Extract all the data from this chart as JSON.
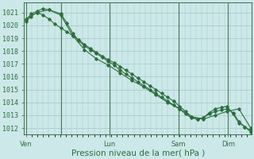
{
  "bg_color": "#cce8e8",
  "grid_color": "#aacccc",
  "line_color": "#2d6e3e",
  "marker_color": "#2d6e3e",
  "ylim": [
    1011.5,
    1021.8
  ],
  "yticks": [
    1012,
    1013,
    1014,
    1015,
    1016,
    1017,
    1018,
    1019,
    1020,
    1021
  ],
  "xlabel": "Pression niveau de la mer( hPa )",
  "vline_x": [
    0,
    35,
    84,
    154,
    204
  ],
  "xtick_positions": [
    0,
    35,
    84,
    154,
    204
  ],
  "xtick_labels": [
    "Ven",
    "",
    "Lun",
    "Sam",
    "Dim"
  ],
  "total_points": 229,
  "series1_x": [
    0,
    5,
    11,
    17,
    23,
    29,
    35,
    41,
    47,
    53,
    59,
    65,
    71,
    77,
    83,
    89,
    95,
    101,
    107,
    113,
    119,
    125,
    131,
    137,
    143,
    149,
    155,
    161,
    167,
    173,
    179,
    185,
    191,
    197,
    203,
    209,
    215,
    221,
    227
  ],
  "series1_y": [
    1020.3,
    1020.7,
    1021.0,
    1020.8,
    1020.5,
    1020.1,
    1019.8,
    1019.5,
    1019.2,
    1018.9,
    1018.5,
    1018.2,
    1017.9,
    1017.6,
    1017.3,
    1017.1,
    1016.8,
    1016.5,
    1016.2,
    1015.9,
    1015.6,
    1015.3,
    1015.0,
    1014.7,
    1014.4,
    1014.1,
    1013.7,
    1013.3,
    1012.9,
    1012.7,
    1012.8,
    1013.1,
    1013.3,
    1013.4,
    1013.5,
    1013.2,
    1012.5,
    1012.1,
    1011.8
  ],
  "series2_x": [
    0,
    5,
    11,
    17,
    23,
    35,
    41,
    47,
    53,
    59,
    65,
    71,
    77,
    83,
    89,
    95,
    101,
    107,
    113,
    119,
    125,
    131,
    137,
    143,
    149,
    155,
    161,
    167,
    173,
    179,
    185,
    191,
    197,
    203,
    209,
    215,
    221,
    227
  ],
  "series2_y": [
    1020.4,
    1020.9,
    1021.1,
    1021.3,
    1021.2,
    1020.9,
    1020.2,
    1019.4,
    1018.8,
    1018.4,
    1018.1,
    1017.8,
    1017.5,
    1017.2,
    1016.9,
    1016.5,
    1016.2,
    1015.9,
    1015.6,
    1015.3,
    1015.0,
    1014.7,
    1014.4,
    1014.1,
    1013.8,
    1013.5,
    1013.1,
    1012.8,
    1012.7,
    1012.8,
    1013.2,
    1013.5,
    1013.6,
    1013.7,
    1013.1,
    1012.4,
    1012.1,
    1011.7
  ],
  "series3_x": [
    0,
    11,
    23,
    35,
    47,
    59,
    71,
    83,
    95,
    107,
    119,
    131,
    143,
    155,
    167,
    179,
    191,
    203,
    215,
    227
  ],
  "series3_y": [
    1020.5,
    1021.0,
    1021.2,
    1020.8,
    1019.2,
    1018.1,
    1017.4,
    1016.9,
    1016.3,
    1015.7,
    1015.2,
    1014.6,
    1014.0,
    1013.5,
    1012.9,
    1012.7,
    1013.0,
    1013.3,
    1013.5,
    1012.0
  ],
  "font_color": "#2d6e3e",
  "font_size_y": 6,
  "font_size_x": 6,
  "font_size_xlabel": 7.5
}
